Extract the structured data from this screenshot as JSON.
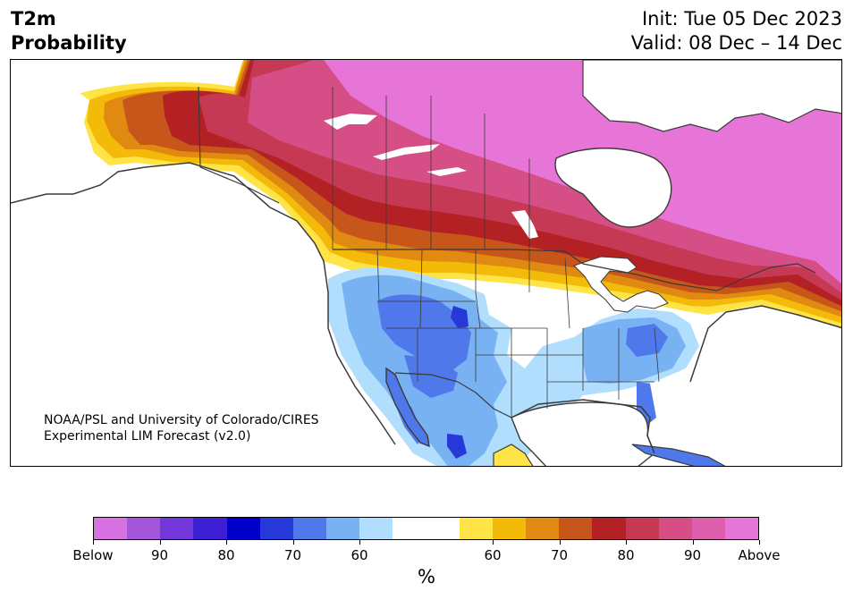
{
  "header": {
    "title_line1": "T2m",
    "title_line2": "Probability",
    "init": "Init: Tue 05 Dec 2023",
    "valid": "Valid: 08 Dec – 14 Dec"
  },
  "credit": {
    "line1": "NOAA/PSL and University of Colorado/CIRES",
    "line2": "Experimental LIM Forecast (v2.0)"
  },
  "colorbar": {
    "unit": "%",
    "colors": [
      "#d971e3",
      "#a356db",
      "#7437dc",
      "#3d1ed3",
      "#0000cd",
      "#2638d8",
      "#4f78ea",
      "#79b2f3",
      "#b1defc",
      "#ffffff",
      "#ffffff",
      "#ffe447",
      "#f4ba0a",
      "#e08a12",
      "#c7561a",
      "#b42124",
      "#c53954",
      "#d54e86",
      "#dd5fac",
      "#e775d8"
    ],
    "tick_labels": [
      "Below",
      "90",
      "80",
      "70",
      "60",
      "60",
      "70",
      "80",
      "90",
      "Above"
    ]
  },
  "map": {
    "categories": {
      "below_60_65": "#b1defc",
      "below_65_70": "#79b2f3",
      "below_70_75": "#4f78ea",
      "below_75_80": "#2638d8",
      "above_60_65": "#ffe447",
      "above_65_70": "#f4ba0a",
      "above_70_75": "#e08a12",
      "above_75_80": "#c7561a",
      "above_80_85": "#b42124",
      "above_85_90": "#c53954",
      "above_90_95": "#d54e86",
      "above_95_100": "#e775d8"
    },
    "coastline_color": "#3a3a3a"
  }
}
